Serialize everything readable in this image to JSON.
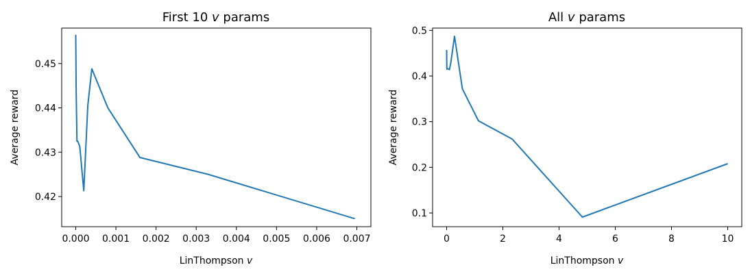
{
  "chart_data": [
    {
      "type": "line",
      "title": "First 10",
      "title_var": "v",
      "title_suffix": "params",
      "xlabel": "LinThompson",
      "xlabel_var": "v",
      "ylabel": "Average reward",
      "xlim": [
        -0.00035,
        0.00735
      ],
      "ylim": [
        0.4132,
        0.458
      ],
      "xticks": [
        0.0,
        0.001,
        0.002,
        0.003,
        0.004,
        0.005,
        0.006,
        0.007
      ],
      "xtick_labels": [
        "0.000",
        "0.001",
        "0.002",
        "0.003",
        "0.004",
        "0.005",
        "0.006",
        "0.007"
      ],
      "yticks": [
        0.42,
        0.43,
        0.44,
        0.45
      ],
      "ytick_labels": [
        "0.42",
        "0.43",
        "0.44",
        "0.45"
      ],
      "series": [
        {
          "color": "#1f77b4",
          "x": [
            0.0,
            1e-05,
            3e-05,
            5e-05,
            0.0001,
            0.0002,
            0.0003,
            0.0004,
            0.0008,
            0.0016,
            0.0033,
            0.00695
          ],
          "y": [
            0.4565,
            0.444,
            0.4325,
            0.4325,
            0.4313,
            0.4213,
            0.4405,
            0.4488,
            0.44,
            0.4288,
            0.425,
            0.415
          ]
        }
      ]
    },
    {
      "type": "line",
      "title": "All",
      "title_var": "v",
      "title_suffix": "params",
      "xlabel": "LinThompson",
      "xlabel_var": "v",
      "ylabel": "Average reward",
      "xlim": [
        -0.5,
        10.5
      ],
      "ylim": [
        0.07,
        0.505
      ],
      "xticks": [
        0,
        2,
        4,
        6,
        8,
        10
      ],
      "xtick_labels": [
        "0",
        "2",
        "4",
        "6",
        "8",
        "10"
      ],
      "yticks": [
        0.1,
        0.2,
        0.3,
        0.4,
        0.5
      ],
      "ytick_labels": [
        "0.1",
        "0.2",
        "0.3",
        "0.4",
        "0.5"
      ],
      "series": [
        {
          "color": "#1f77b4",
          "x": [
            0.0,
            0.005,
            0.01,
            0.05,
            0.1,
            0.15,
            0.28,
            0.56,
            1.13,
            2.33,
            4.83,
            10.0
          ],
          "y": [
            0.457,
            0.42,
            0.415,
            0.416,
            0.414,
            0.43,
            0.487,
            0.372,
            0.302,
            0.262,
            0.091,
            0.208
          ]
        }
      ]
    }
  ]
}
